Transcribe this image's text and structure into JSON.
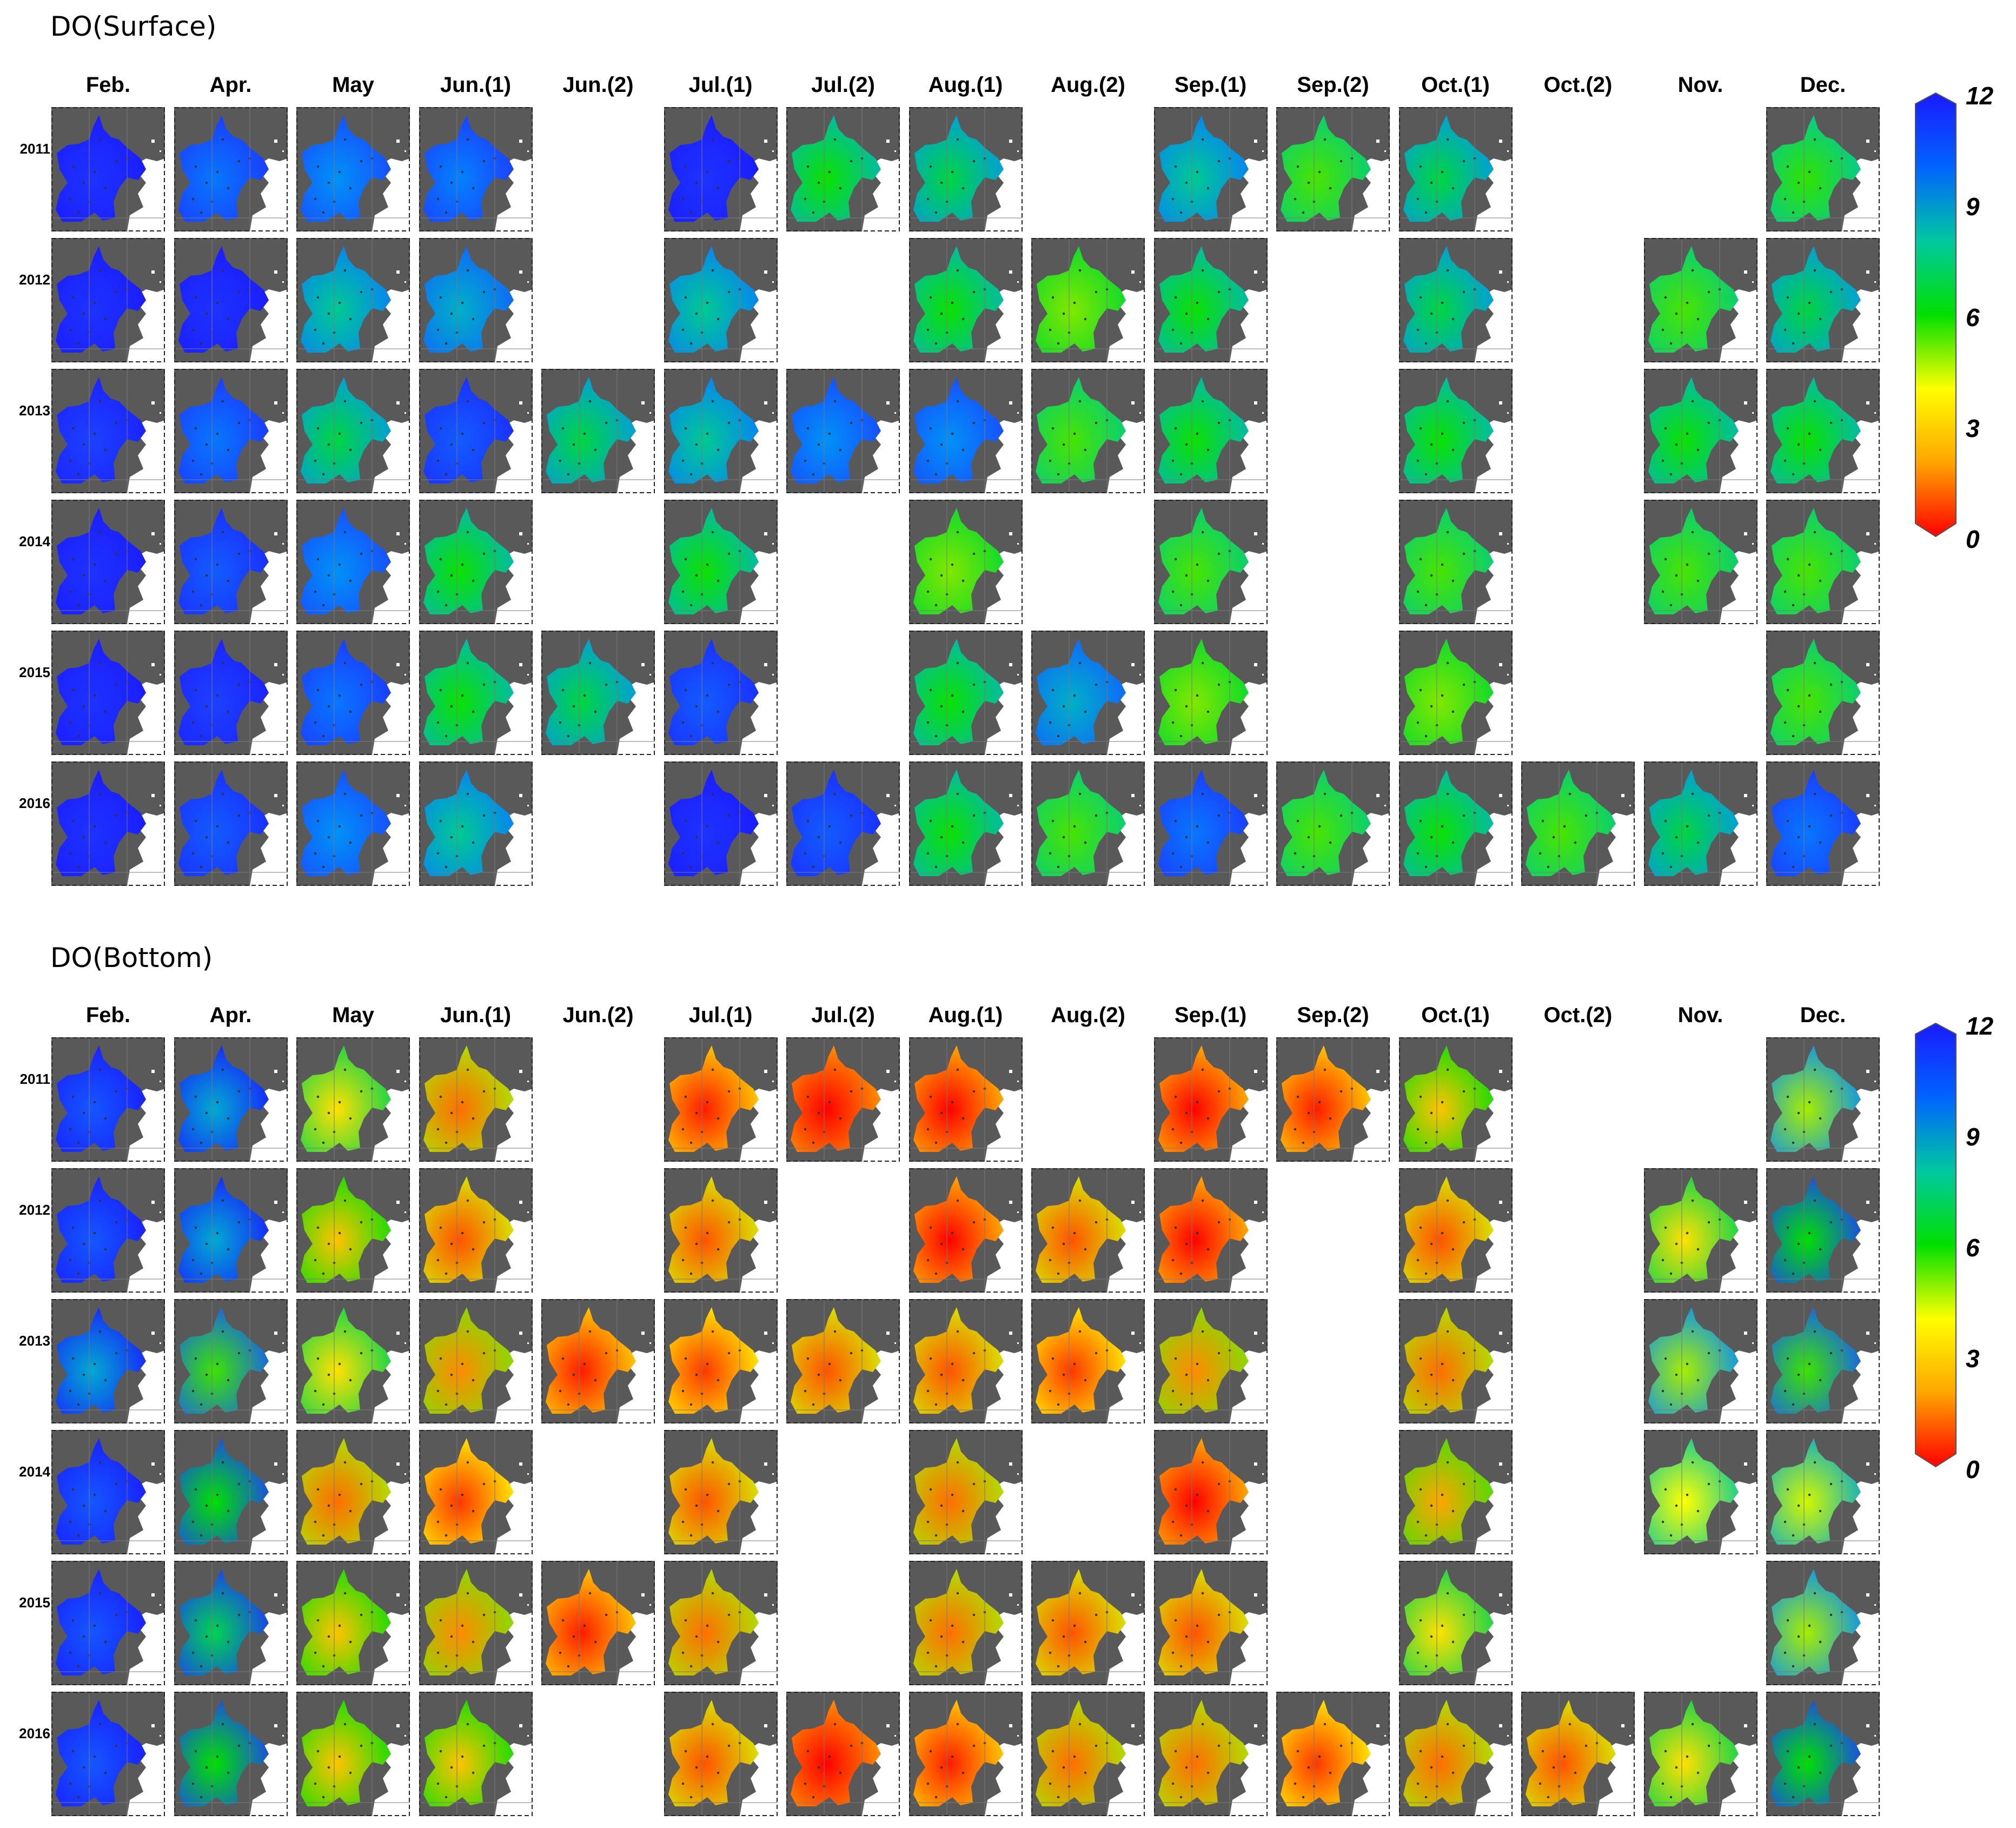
{
  "colorbar": {
    "min": 0,
    "max": 12,
    "ticks": [
      "12",
      "9",
      "6",
      "3",
      "0"
    ],
    "colors": [
      "#ff0000",
      "#ffa500",
      "#ffff00",
      "#00e000",
      "#00c8a0",
      "#0064ff",
      "#1a1aff"
    ]
  },
  "colors": {
    "land": "#595959",
    "background": "#ffffff"
  },
  "months": [
    "Feb.",
    "Apr.",
    "May",
    "Jun.(1)",
    "Jun.(2)",
    "Jul.(1)",
    "Jul.(2)",
    "Aug.(1)",
    "Aug.(2)",
    "Sep.(1)",
    "Sep.(2)",
    "Oct.(1)",
    "Oct.(2)",
    "Nov.",
    "Dec."
  ],
  "years": [
    "2011",
    "2012",
    "2013",
    "2014",
    "2015",
    "2016"
  ],
  "panels": [
    {
      "title": "DO(Surface)",
      "grid": [
        [
          11.5,
          10.0,
          9.5,
          9.8,
          null,
          11.5,
          7.5,
          8.0,
          null,
          8.5,
          7.0,
          8.0,
          null,
          null,
          7.2
        ],
        [
          11.5,
          11.5,
          8.5,
          9.0,
          null,
          8.5,
          null,
          7.5,
          6.5,
          7.5,
          null,
          8.0,
          null,
          7.0,
          8.0
        ],
        [
          11.0,
          10.0,
          8.0,
          10.5,
          8.0,
          8.5,
          9.5,
          9.5,
          7.0,
          7.5,
          null,
          7.5,
          null,
          7.5,
          7.5
        ],
        [
          11.5,
          10.5,
          9.5,
          7.5,
          null,
          7.5,
          null,
          6.5,
          null,
          7.0,
          null,
          7.0,
          null,
          7.0,
          7.0
        ],
        [
          11.5,
          11.0,
          10.0,
          7.5,
          8.0,
          10.5,
          null,
          7.5,
          9.0,
          6.5,
          null,
          6.5,
          null,
          null,
          7.0
        ],
        [
          11.5,
          10.5,
          9.5,
          8.5,
          null,
          11.5,
          10.5,
          7.5,
          7.0,
          10.0,
          7.0,
          7.5,
          7.0,
          8.0,
          10.0
        ]
      ]
    },
    {
      "title": "DO(Bottom)",
      "grid": [
        [
          11.5,
          10.0,
          5.5,
          3.5,
          null,
          2.0,
          1.0,
          1.5,
          null,
          1.5,
          2.0,
          5.0,
          null,
          null,
          7.0
        ],
        [
          11.5,
          10.0,
          5.0,
          3.0,
          null,
          3.0,
          null,
          1.5,
          3.0,
          1.5,
          null,
          3.0,
          null,
          5.5,
          8.5
        ],
        [
          10.0,
          8.0,
          5.5,
          4.0,
          2.0,
          2.5,
          3.0,
          3.0,
          2.5,
          4.0,
          null,
          3.5,
          null,
          7.0,
          8.0
        ],
        [
          11.5,
          8.5,
          3.5,
          2.5,
          null,
          3.0,
          null,
          3.5,
          null,
          1.5,
          null,
          4.5,
          null,
          6.0,
          6.5
        ],
        [
          11.5,
          9.0,
          5.0,
          4.0,
          2.0,
          3.5,
          null,
          3.5,
          3.0,
          3.0,
          null,
          5.5,
          null,
          null,
          7.0
        ],
        [
          11.5,
          8.5,
          5.0,
          5.0,
          null,
          3.0,
          1.0,
          2.0,
          3.5,
          3.5,
          2.5,
          3.5,
          3.0,
          5.5,
          8.5
        ]
      ]
    }
  ]
}
